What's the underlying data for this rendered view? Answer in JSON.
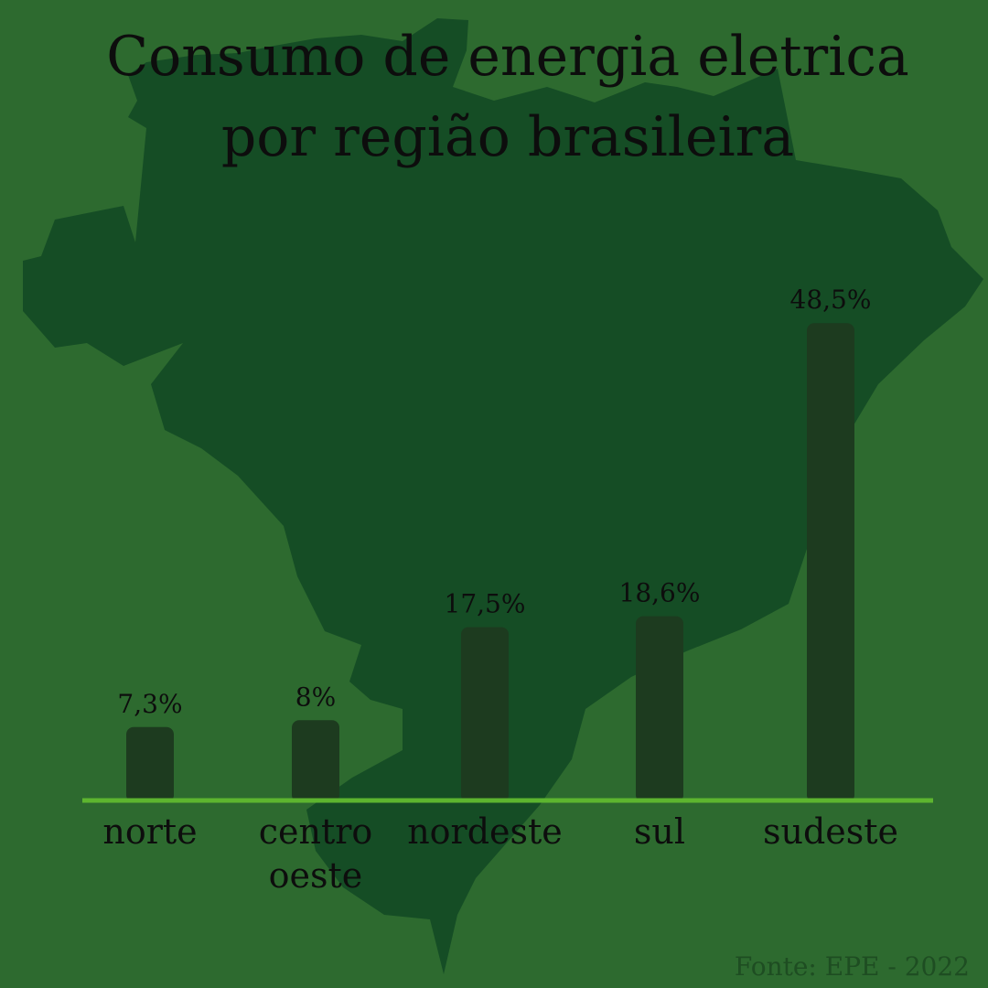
{
  "title_lines": [
    "Consumo de energia eletrica",
    "por região brasileira"
  ],
  "source": "Fonte: EPE - 2022",
  "colors": {
    "background": "#2d6a2f",
    "map": "#154d25",
    "bar": "#1d3b1f",
    "baseline": "#5db52f",
    "text": "#0d0d0d",
    "source_text": "#1e4d22"
  },
  "chart_data": {
    "type": "bar",
    "title": "Consumo de energia eletrica por região brasileira",
    "categories": [
      [
        "norte"
      ],
      [
        "centro",
        "oeste"
      ],
      [
        "nordeste"
      ],
      [
        "sul"
      ],
      [
        "sudeste"
      ]
    ],
    "values": [
      7.3,
      8,
      17.5,
      18.6,
      48.5
    ],
    "value_labels": [
      "7,3%",
      "8%",
      "17,5%",
      "18,6%",
      "48,5%"
    ],
    "unit": "%",
    "ylim": [
      0,
      60
    ],
    "grid": false,
    "xlabel": "",
    "ylabel": ""
  }
}
